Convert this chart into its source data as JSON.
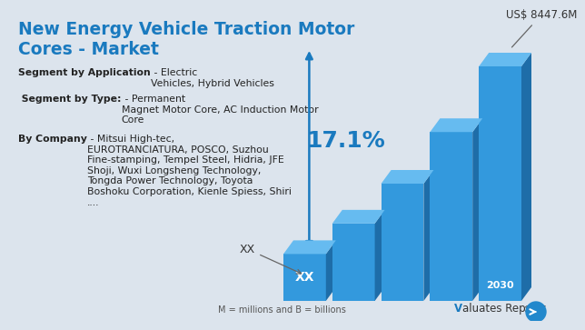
{
  "title_line1": "New Energy Vehicle Traction Motor",
  "title_line2": "Cores - Market",
  "title_color": "#1a7abf",
  "background_color": "#dce4ed",
  "bar_values": [
    1.0,
    1.65,
    2.5,
    3.6,
    5.0
  ],
  "face_color": "#3399dd",
  "side_color": "#1e6da8",
  "top_color": "#66bbf0",
  "year_label": "2030",
  "cagr_text": "17.1%",
  "cagr_color": "#1a7abf",
  "annotation_value": "US$ 8447.6M",
  "xx_callout": "XX",
  "xx_bar_label": "XX",
  "footnote": "M = millions and B = billions",
  "seg_app_bold": "Segment by Application",
  "seg_app_normal": " - Electric\nVehicles, Hybrid Vehicles",
  "seg_type_bold": " Segment by Type:",
  "seg_type_normal": " - Permanent\nMagnet Motor Core, AC Induction Motor\nCore",
  "by_co_bold": "By Company",
  "by_co_normal": " - Mitsui High-tec,\nEUROTRANCIATURA, POSCO, Suzhou\nFine-stamping, Tempel Steel, Hidria, JFE\nShoji, Wuxi Longsheng Technology,\nTongda Power Technology, Toyota\nBoshoku Corporation, Kienle Spiess, Shiri\n....",
  "logo_v_color": "#1a7abf",
  "logo_rest": "aluates Reports",
  "logo_reg": "®"
}
